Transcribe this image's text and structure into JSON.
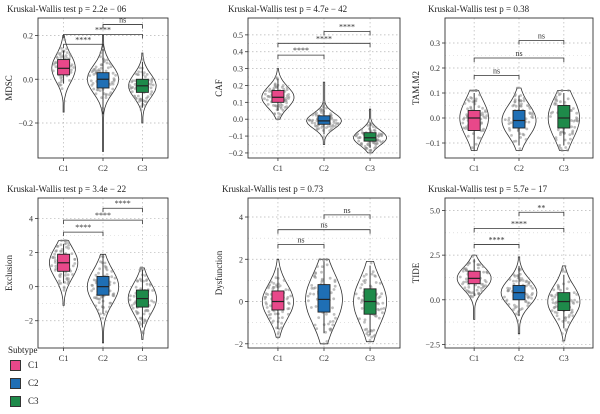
{
  "legend": {
    "title": "Subtype",
    "items": [
      {
        "label": "C1",
        "color": "#e8488a"
      },
      {
        "label": "C2",
        "color": "#1f6fb5"
      },
      {
        "label": "C3",
        "color": "#1e8a4a"
      }
    ]
  },
  "chart_data": [
    {
      "type": "violin-box",
      "title": "Kruskal-Wallis test p = 2.2e − 06",
      "ylabel": "MDSC",
      "categories": [
        "C1",
        "C2",
        "C3"
      ],
      "ylim": [
        -0.36,
        0.28
      ],
      "yticks": [
        -0.2,
        0.0,
        0.2
      ],
      "yticklabels": [
        "−0.2",
        "0.0",
        "0.2"
      ],
      "groups": [
        {
          "category": "C1",
          "q1": 0.02,
          "median": 0.05,
          "q3": 0.09,
          "wmin": -0.02,
          "wmax": 0.13,
          "vmin": -0.15,
          "vmax": 0.2,
          "vwidth": 0.3
        },
        {
          "category": "C2",
          "q1": -0.04,
          "median": 0.0,
          "q3": 0.03,
          "wmin": -0.16,
          "wmax": 0.14,
          "vmin": -0.33,
          "vmax": 0.2,
          "vwidth": 0.4
        },
        {
          "category": "C3",
          "q1": -0.06,
          "median": -0.03,
          "q3": 0.0,
          "wmin": -0.13,
          "wmax": 0.08,
          "vmin": -0.2,
          "vmax": 0.12,
          "vwidth": 0.35
        }
      ],
      "comparisons": [
        {
          "from": "C1",
          "to": "C2",
          "y": 0.16,
          "label": "****"
        },
        {
          "from": "C1",
          "to": "C3",
          "y": 0.205,
          "label": "****"
        },
        {
          "from": "C2",
          "to": "C3",
          "y": 0.25,
          "label": "ns"
        }
      ]
    },
    {
      "type": "violin-box",
      "title": "Kruskal-Wallis test p = 4.7e − 42",
      "ylabel": "CAF",
      "categories": [
        "C1",
        "C2",
        "C3"
      ],
      "ylim": [
        -0.23,
        0.6
      ],
      "yticks": [
        -0.2,
        -0.1,
        0.0,
        0.1,
        0.2,
        0.3,
        0.4,
        0.5
      ],
      "yticklabels": [
        "−0.2",
        "−0.1",
        "0.0",
        "0.1",
        "0.2",
        "0.3",
        "0.4",
        "0.5"
      ],
      "groups": [
        {
          "category": "C1",
          "q1": 0.1,
          "median": 0.13,
          "q3": 0.17,
          "wmin": 0.05,
          "wmax": 0.24,
          "vmin": 0.0,
          "vmax": 0.3,
          "vwidth": 0.35
        },
        {
          "category": "C2",
          "q1": -0.03,
          "median": -0.01,
          "q3": 0.02,
          "wmin": -0.09,
          "wmax": 0.1,
          "vmin": -0.15,
          "vmax": 0.22,
          "vwidth": 0.38
        },
        {
          "category": "C3",
          "q1": -0.13,
          "median": -0.11,
          "q3": -0.08,
          "wmin": -0.17,
          "wmax": -0.02,
          "vmin": -0.2,
          "vmax": 0.06,
          "vwidth": 0.36
        }
      ],
      "comparisons": [
        {
          "from": "C1",
          "to": "C2",
          "y": 0.38,
          "label": "****"
        },
        {
          "from": "C1",
          "to": "C3",
          "y": 0.45,
          "label": "****"
        },
        {
          "from": "C2",
          "to": "C3",
          "y": 0.52,
          "label": "****"
        }
      ]
    },
    {
      "type": "violin-box",
      "title": "Kruskal-Wallis test p = 0.38",
      "ylabel": "TAM.M2",
      "categories": [
        "C1",
        "C2",
        "C3"
      ],
      "ylim": [
        -0.16,
        0.4
      ],
      "yticks": [
        -0.1,
        0.0,
        0.1,
        0.2,
        0.3
      ],
      "yticklabels": [
        "−0.1",
        "0.0",
        "0.1",
        "0.2",
        "0.3"
      ],
      "groups": [
        {
          "category": "C1",
          "q1": -0.05,
          "median": 0.0,
          "q3": 0.03,
          "wmin": -0.13,
          "wmax": 0.1,
          "vmin": -0.13,
          "vmax": 0.11,
          "vwidth": 0.32
        },
        {
          "category": "C2",
          "q1": -0.04,
          "median": -0.01,
          "q3": 0.03,
          "wmin": -0.11,
          "wmax": 0.09,
          "vmin": -0.13,
          "vmax": 0.12,
          "vwidth": 0.38
        },
        {
          "category": "C3",
          "q1": -0.04,
          "median": 0.0,
          "q3": 0.05,
          "wmin": -0.11,
          "wmax": 0.1,
          "vmin": -0.13,
          "vmax": 0.11,
          "vwidth": 0.35
        }
      ],
      "comparisons": [
        {
          "from": "C1",
          "to": "C2",
          "y": 0.17,
          "label": "ns"
        },
        {
          "from": "C1",
          "to": "C3",
          "y": 0.24,
          "label": "ns"
        },
        {
          "from": "C2",
          "to": "C3",
          "y": 0.31,
          "label": "ns"
        }
      ]
    },
    {
      "type": "violin-box",
      "title": "Kruskal-Wallis test p = 3.4e − 22",
      "ylabel": "Exclusion",
      "categories": [
        "C1",
        "C2",
        "C3"
      ],
      "ylim": [
        -3.6,
        5.2
      ],
      "yticks": [
        -2,
        0,
        2,
        4
      ],
      "yticklabels": [
        "−2",
        "0",
        "2",
        "4"
      ],
      "groups": [
        {
          "category": "C1",
          "q1": 0.9,
          "median": 1.4,
          "q3": 1.9,
          "wmin": 0.2,
          "wmax": 2.5,
          "vmin": -1.1,
          "vmax": 2.7,
          "vwidth": 0.36
        },
        {
          "category": "C2",
          "q1": -0.5,
          "median": 0.0,
          "q3": 0.6,
          "wmin": -1.6,
          "wmax": 1.9,
          "vmin": -3.3,
          "vmax": 1.9,
          "vwidth": 0.4
        },
        {
          "category": "C3",
          "q1": -1.2,
          "median": -0.7,
          "q3": -0.2,
          "wmin": -2.4,
          "wmax": 1.0,
          "vmin": -3.1,
          "vmax": 1.1,
          "vwidth": 0.36
        }
      ],
      "comparisons": [
        {
          "from": "C1",
          "to": "C2",
          "y": 3.2,
          "label": "****"
        },
        {
          "from": "C1",
          "to": "C3",
          "y": 3.9,
          "label": "****"
        },
        {
          "from": "C2",
          "to": "C3",
          "y": 4.6,
          "label": "****"
        }
      ]
    },
    {
      "type": "violin-box",
      "title": "Kruskal-Wallis test p = 0.73",
      "ylabel": "Dysfunction",
      "categories": [
        "C1",
        "C2",
        "C3"
      ],
      "ylim": [
        -2.2,
        4.9
      ],
      "yticks": [
        -2,
        0,
        2,
        4
      ],
      "yticklabels": [
        "−2",
        "0",
        "2",
        "4"
      ],
      "groups": [
        {
          "category": "C1",
          "q1": -0.4,
          "median": 0.0,
          "q3": 0.5,
          "wmin": -1.3,
          "wmax": 1.6,
          "vmin": -1.7,
          "vmax": 2.0,
          "vwidth": 0.34
        },
        {
          "category": "C2",
          "q1": -0.5,
          "median": 0.1,
          "q3": 0.8,
          "wmin": -1.5,
          "wmax": 1.9,
          "vmin": -2.0,
          "vmax": 2.0,
          "vwidth": 0.4
        },
        {
          "category": "C3",
          "q1": -0.6,
          "median": 0.0,
          "q3": 0.6,
          "wmin": -1.6,
          "wmax": 1.7,
          "vmin": -1.9,
          "vmax": 1.9,
          "vwidth": 0.36
        }
      ],
      "comparisons": [
        {
          "from": "C1",
          "to": "C2",
          "y": 2.7,
          "label": "ns"
        },
        {
          "from": "C1",
          "to": "C3",
          "y": 3.4,
          "label": "ns"
        },
        {
          "from": "C2",
          "to": "C3",
          "y": 4.1,
          "label": "ns"
        }
      ]
    },
    {
      "type": "violin-box",
      "title": "Kruskal-Wallis test p = 5.7e − 17",
      "ylabel": "TIDE",
      "categories": [
        "C1",
        "C2",
        "C3"
      ],
      "ylim": [
        -2.7,
        5.7
      ],
      "yticks": [
        -2.5,
        0.0,
        2.5,
        5.0
      ],
      "yticklabels": [
        "−2.5",
        "0.0",
        "2.5",
        "5.0"
      ],
      "groups": [
        {
          "category": "C1",
          "q1": 0.9,
          "median": 1.2,
          "q3": 1.6,
          "wmin": 0.2,
          "wmax": 2.3,
          "vmin": -1.1,
          "vmax": 2.5,
          "vwidth": 0.38
        },
        {
          "category": "C2",
          "q1": 0.0,
          "median": 0.4,
          "q3": 0.8,
          "wmin": -0.9,
          "wmax": 1.9,
          "vmin": -1.9,
          "vmax": 2.4,
          "vwidth": 0.4
        },
        {
          "category": "C3",
          "q1": -0.6,
          "median": -0.1,
          "q3": 0.4,
          "wmin": -1.6,
          "wmax": 1.4,
          "vmin": -2.3,
          "vmax": 1.9,
          "vwidth": 0.36
        }
      ],
      "comparisons": [
        {
          "from": "C1",
          "to": "C2",
          "y": 3.1,
          "label": "****"
        },
        {
          "from": "C1",
          "to": "C3",
          "y": 4.0,
          "label": "****"
        },
        {
          "from": "C2",
          "to": "C3",
          "y": 4.9,
          "label": "**"
        }
      ]
    }
  ]
}
